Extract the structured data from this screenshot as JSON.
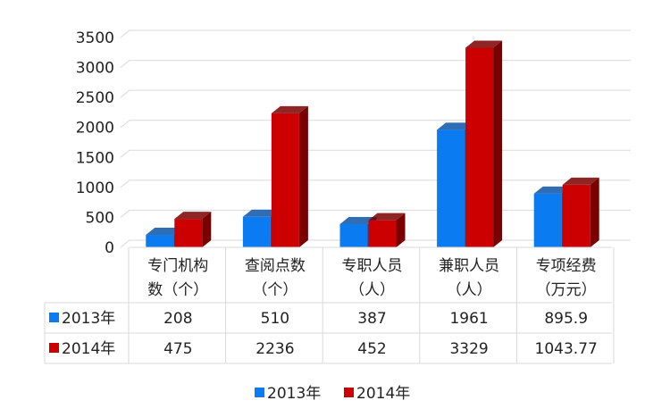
{
  "chart_data": {
    "type": "bar",
    "categories": [
      [
        "专门机构",
        "数（个）"
      ],
      [
        "查阅点数",
        "（个）"
      ],
      [
        "专职人员",
        "（人）"
      ],
      [
        "兼职人员",
        "（人）"
      ],
      [
        "专项经费",
        "（万元）"
      ]
    ],
    "series": [
      {
        "name": "2013年",
        "values": [
          208,
          510,
          387,
          1961,
          895.9
        ],
        "labels": [
          "208",
          "510",
          "387",
          "1961",
          "895.9"
        ],
        "color": "#0a7bf0",
        "side_color": "#0a55a8"
      },
      {
        "name": "2014年",
        "values": [
          475,
          2236,
          452,
          3329,
          1043.77
        ],
        "labels": [
          "475",
          "2236",
          "452",
          "3329",
          "1043.77"
        ],
        "color": "#cc0000",
        "side_color": "#7a0000"
      }
    ],
    "ylim": [
      0,
      3500
    ],
    "yticks": [
      0,
      500,
      1000,
      1500,
      2000,
      2500,
      3000,
      3500
    ],
    "grid": true,
    "legend": "bottom",
    "data_table": true
  }
}
